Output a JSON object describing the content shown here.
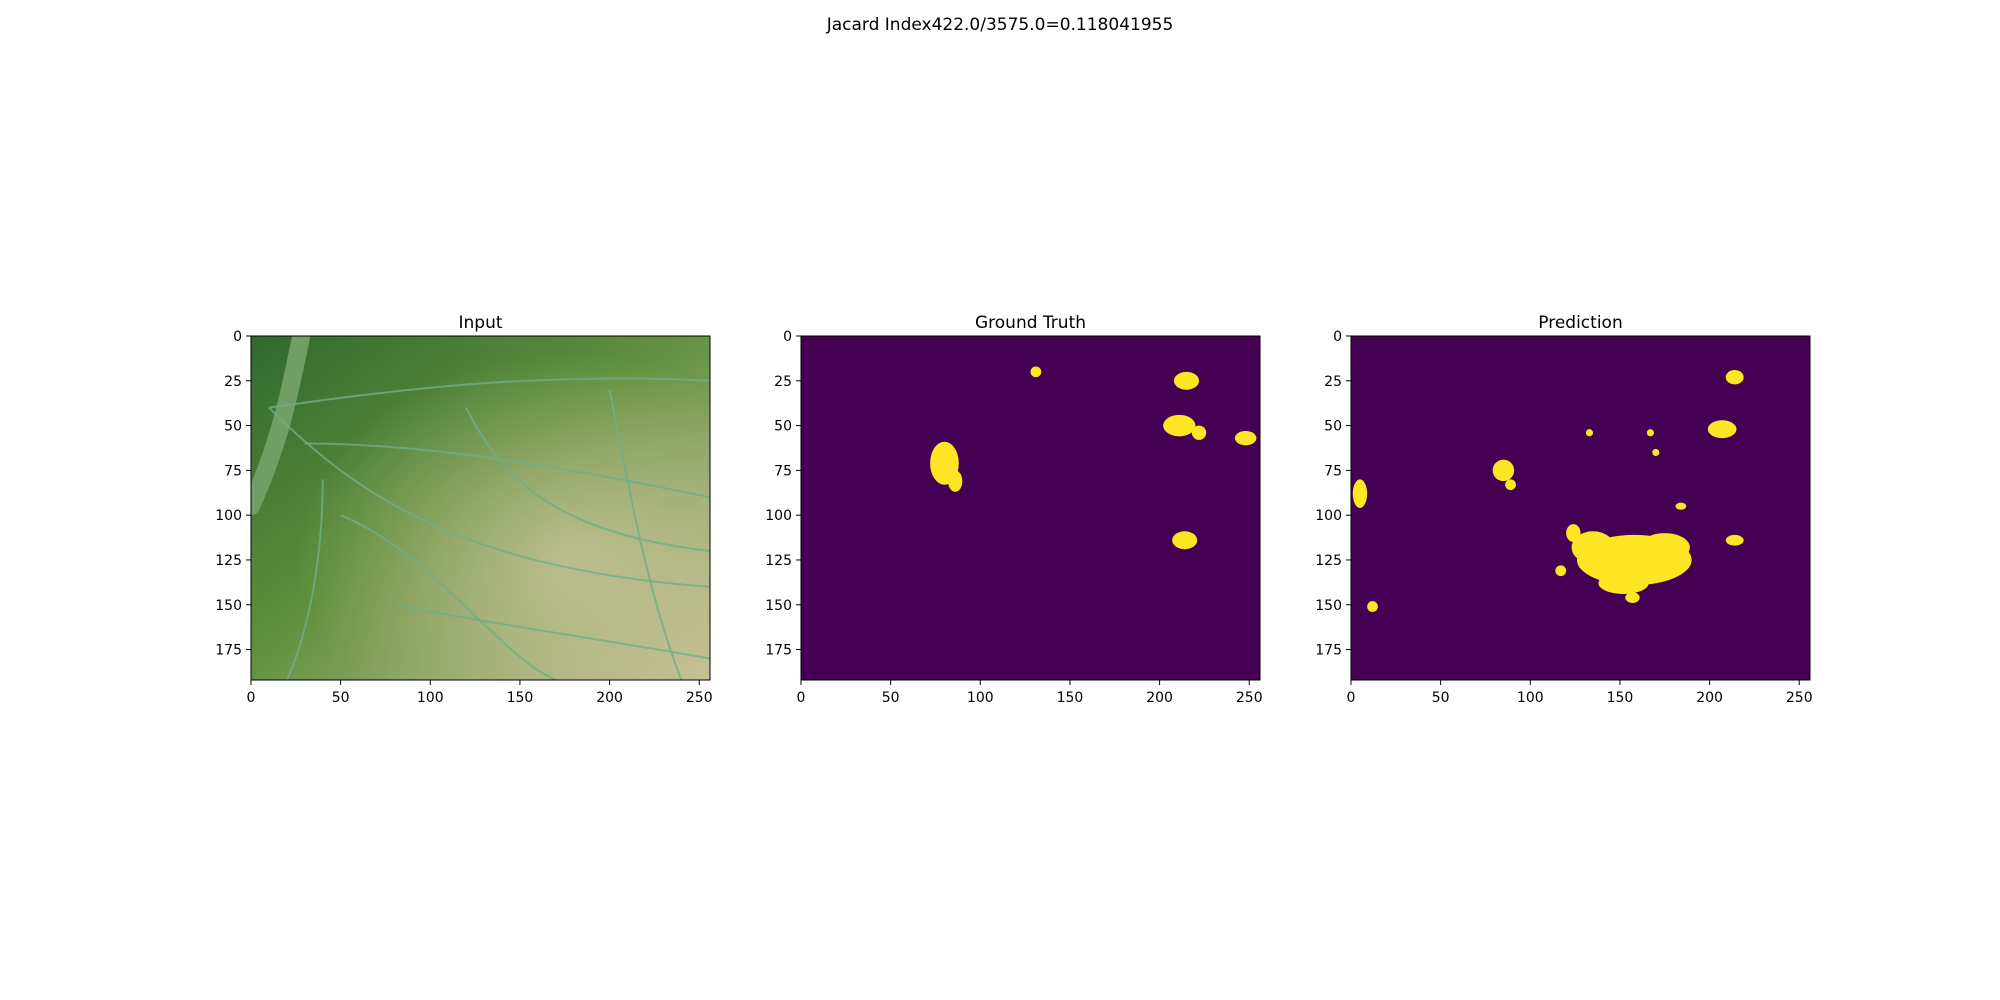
{
  "figure": {
    "suptitle": "Jacard Index422.0/3575.0=0.118041955"
  },
  "chart_data": [
    {
      "type": "image",
      "title": "Input",
      "colormap": "rgb",
      "image_shape": [
        192,
        256
      ],
      "xlim": [
        0,
        256
      ],
      "ylim": [
        192,
        0
      ],
      "xticks": [
        0,
        50,
        100,
        150,
        200,
        250
      ],
      "yticks": [
        0,
        25,
        50,
        75,
        100,
        125,
        150,
        175
      ],
      "base_colors": [
        "#5f8f3e",
        "#b8b88a",
        "#2f6a2c"
      ],
      "vein_color": "#6fae88"
    },
    {
      "type": "heatmap",
      "title": "Ground Truth",
      "colormap": "viridis",
      "background_color": "#440154",
      "foreground_color": "#fde725",
      "image_shape": [
        192,
        256
      ],
      "xlim": [
        0,
        256
      ],
      "ylim": [
        192,
        0
      ],
      "xticks": [
        0,
        50,
        100,
        150,
        200,
        250
      ],
      "yticks": [
        0,
        25,
        50,
        75,
        100,
        125,
        150,
        175
      ],
      "regions": [
        {
          "x": 131,
          "y": 20,
          "rx": 3,
          "ry": 3
        },
        {
          "x": 80,
          "y": 71,
          "rx": 8,
          "ry": 12
        },
        {
          "x": 86,
          "y": 81,
          "rx": 4,
          "ry": 6
        },
        {
          "x": 215,
          "y": 25,
          "rx": 7,
          "ry": 5
        },
        {
          "x": 211,
          "y": 50,
          "rx": 9,
          "ry": 6
        },
        {
          "x": 222,
          "y": 54,
          "rx": 4,
          "ry": 4
        },
        {
          "x": 248,
          "y": 57,
          "rx": 6,
          "ry": 4
        },
        {
          "x": 214,
          "y": 114,
          "rx": 7,
          "ry": 5
        }
      ]
    },
    {
      "type": "heatmap",
      "title": "Prediction",
      "colormap": "viridis",
      "background_color": "#440154",
      "foreground_color": "#fde725",
      "image_shape": [
        192,
        256
      ],
      "xlim": [
        0,
        256
      ],
      "ylim": [
        192,
        0
      ],
      "xticks": [
        0,
        50,
        100,
        150,
        200,
        250
      ],
      "yticks": [
        0,
        25,
        50,
        75,
        100,
        125,
        150,
        175
      ],
      "regions": [
        {
          "x": 158,
          "y": 125,
          "rx": 32,
          "ry": 14
        },
        {
          "x": 135,
          "y": 118,
          "rx": 12,
          "ry": 9
        },
        {
          "x": 175,
          "y": 118,
          "rx": 14,
          "ry": 8
        },
        {
          "x": 152,
          "y": 138,
          "rx": 14,
          "ry": 6
        },
        {
          "x": 124,
          "y": 110,
          "rx": 4,
          "ry": 5
        },
        {
          "x": 117,
          "y": 131,
          "rx": 3,
          "ry": 3
        },
        {
          "x": 214,
          "y": 23,
          "rx": 5,
          "ry": 4
        },
        {
          "x": 207,
          "y": 52,
          "rx": 8,
          "ry": 5
        },
        {
          "x": 85,
          "y": 75,
          "rx": 6,
          "ry": 6
        },
        {
          "x": 89,
          "y": 83,
          "rx": 3,
          "ry": 3
        },
        {
          "x": 5,
          "y": 88,
          "rx": 4,
          "ry": 8
        },
        {
          "x": 12,
          "y": 151,
          "rx": 3,
          "ry": 3
        },
        {
          "x": 133,
          "y": 54,
          "rx": 2,
          "ry": 2
        },
        {
          "x": 167,
          "y": 54,
          "rx": 2,
          "ry": 2
        },
        {
          "x": 170,
          "y": 65,
          "rx": 2,
          "ry": 2
        },
        {
          "x": 214,
          "y": 114,
          "rx": 5,
          "ry": 3
        },
        {
          "x": 184,
          "y": 95,
          "rx": 3,
          "ry": 2
        },
        {
          "x": 157,
          "y": 146,
          "rx": 4,
          "ry": 3
        }
      ]
    }
  ]
}
